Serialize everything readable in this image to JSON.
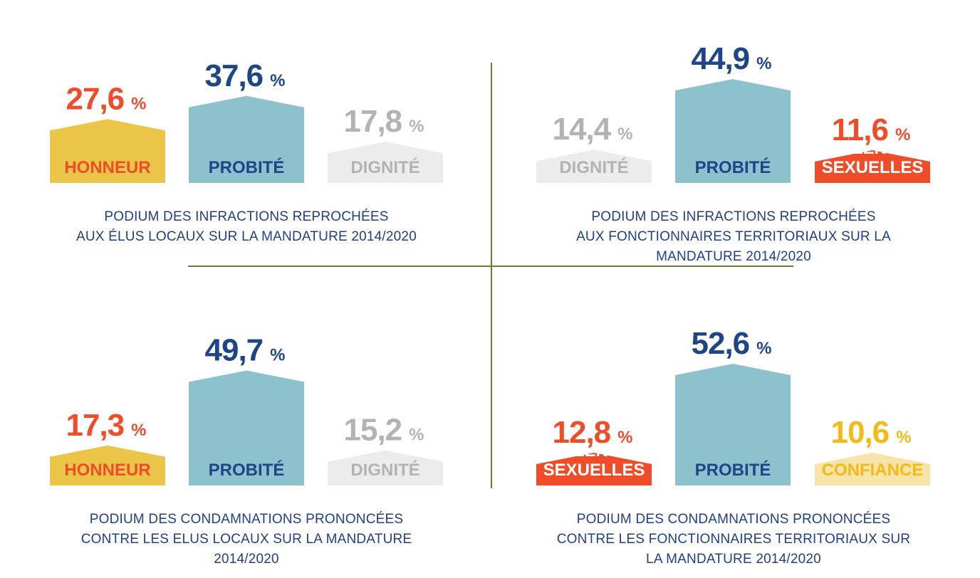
{
  "colors": {
    "honneur_fill": "#ebc547",
    "honneur_text": "#ef4c2a",
    "probite_fill": "#8cc2ce",
    "probite_text": "#1d4588",
    "dignite_fill": "#ececec",
    "dignite_text": "#b3b3b3",
    "violences_fill": "#ef4c2a",
    "violences_text": "#ffffff",
    "confiance_fill": "#f8e3a9",
    "confiance_text": "#f3ba17",
    "caption_text": "#1f3f86",
    "divider": "#6d7a2f"
  },
  "chart_data": [
    {
      "type": "bar",
      "title_lines": [
        "PODIUM DES INFRACTIONS REPROCHÉES",
        "AUX ÉLUS LOCAUX SUR LA MANDATURE 2014/2020"
      ],
      "unit": "%",
      "bars": [
        {
          "category": "HONNEUR",
          "value": 27.6,
          "value_label": "27,6",
          "style": "honneur"
        },
        {
          "category": "PROBITÉ",
          "value": 37.6,
          "value_label": "37,6",
          "style": "probite"
        },
        {
          "category": "DIGNITÉ",
          "value": 17.8,
          "value_label": "17,8",
          "style": "dignite"
        }
      ]
    },
    {
      "type": "bar",
      "title_lines": [
        "PODIUM DES INFRACTIONS REPROCHÉES",
        "AUX FONCTIONNAIRES TERRITORIAUX SUR LA",
        "MANDATURE 2014/2020"
      ],
      "unit": "%",
      "bars": [
        {
          "category": "DIGNITÉ",
          "value": 14.4,
          "value_label": "14,4",
          "style": "dignite"
        },
        {
          "category": "PROBITÉ",
          "value": 44.9,
          "value_label": "44,9",
          "style": "probite"
        },
        {
          "category": "VIOLENCES SEXUELLES",
          "label_lines": [
            "VIOLENCES",
            "SEXUELLES"
          ],
          "value": 11.6,
          "value_label": "11,6",
          "style": "violences"
        }
      ]
    },
    {
      "type": "bar",
      "title_lines": [
        "PODIUM DES CONDAMNATIONS PRONONCÉES",
        "CONTRE LES ELUS LOCAUX SUR LA MANDATURE",
        "2014/2020"
      ],
      "unit": "%",
      "bars": [
        {
          "category": "HONNEUR",
          "value": 17.3,
          "value_label": "17,3",
          "style": "honneur"
        },
        {
          "category": "PROBITÉ",
          "value": 49.7,
          "value_label": "49,7",
          "style": "probite"
        },
        {
          "category": "DIGNITÉ",
          "value": 15.2,
          "value_label": "15,2",
          "style": "dignite"
        }
      ]
    },
    {
      "type": "bar",
      "title_lines": [
        "PODIUM DES CONDAMNATIONS PRONONCÉES",
        "CONTRE LES FONCTIONNAIRES TERRITORIAUX SUR",
        "LA MANDATURE 2014/2020"
      ],
      "unit": "%",
      "bars": [
        {
          "category": "VIOLENCES SEXUELLES",
          "label_lines": [
            "VIOLENCES",
            "SEXUELLES"
          ],
          "value": 12.8,
          "value_label": "12,8",
          "style": "violences"
        },
        {
          "category": "PROBITÉ",
          "value": 52.6,
          "value_label": "52,6",
          "style": "probite"
        },
        {
          "category": "CONFIANCE",
          "value": 10.6,
          "value_label": "10,6",
          "style": "confiance"
        }
      ]
    }
  ]
}
